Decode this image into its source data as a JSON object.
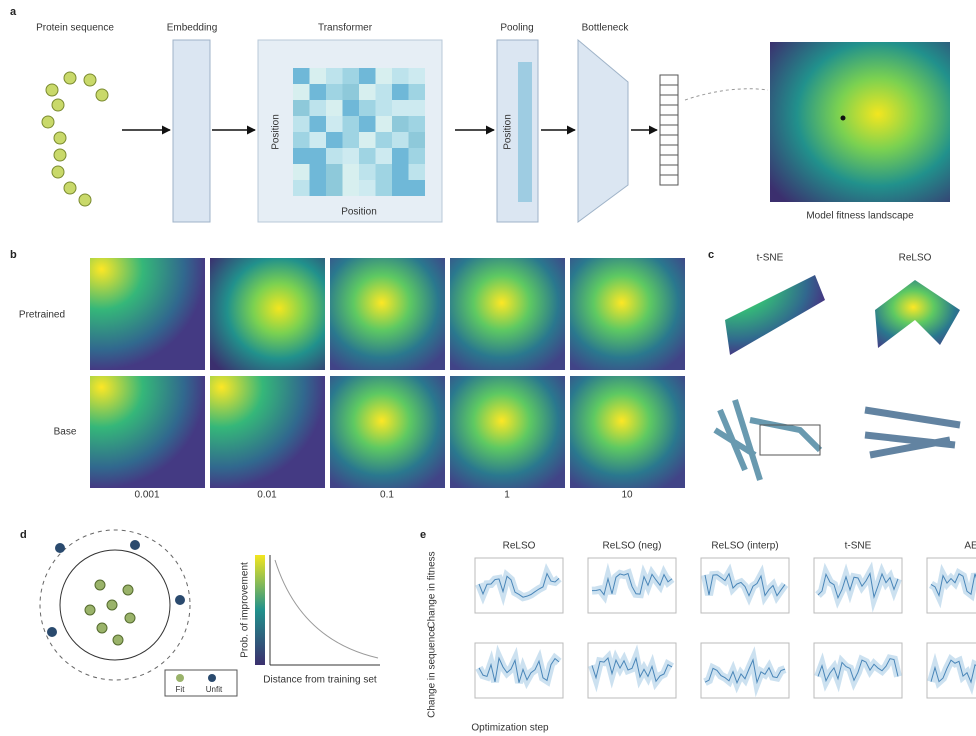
{
  "panel_a": {
    "label": "a",
    "steps": [
      "Protein sequence",
      "Embedding",
      "Transformer",
      "Pooling",
      "Bottleneck"
    ],
    "matrix_axis_labels": [
      "Position",
      "Position"
    ],
    "pooling_axis_label": "Position",
    "landscape_caption": "Model fitness landscape"
  },
  "panel_b": {
    "label": "b",
    "rows": [
      "Pretrained",
      "Base"
    ],
    "columns": [
      "0.001",
      "0.01",
      "0.1",
      "1",
      "10"
    ]
  },
  "panel_c": {
    "label": "c",
    "methods": [
      "t-SNE",
      "ReLSO"
    ]
  },
  "panel_d": {
    "label": "d",
    "legend": [
      "Fit",
      "Unfit"
    ],
    "x_label": "Distance from training set",
    "y_label": "Prob. of improvement"
  },
  "panel_e": {
    "label": "e",
    "methods": [
      "ReLSO",
      "ReLSO (neg)",
      "ReLSO (interp)",
      "t-SNE",
      "AE"
    ],
    "row_labels": [
      "Change in fitness",
      "Change in sequence"
    ],
    "x_label": "Optimization step"
  }
}
